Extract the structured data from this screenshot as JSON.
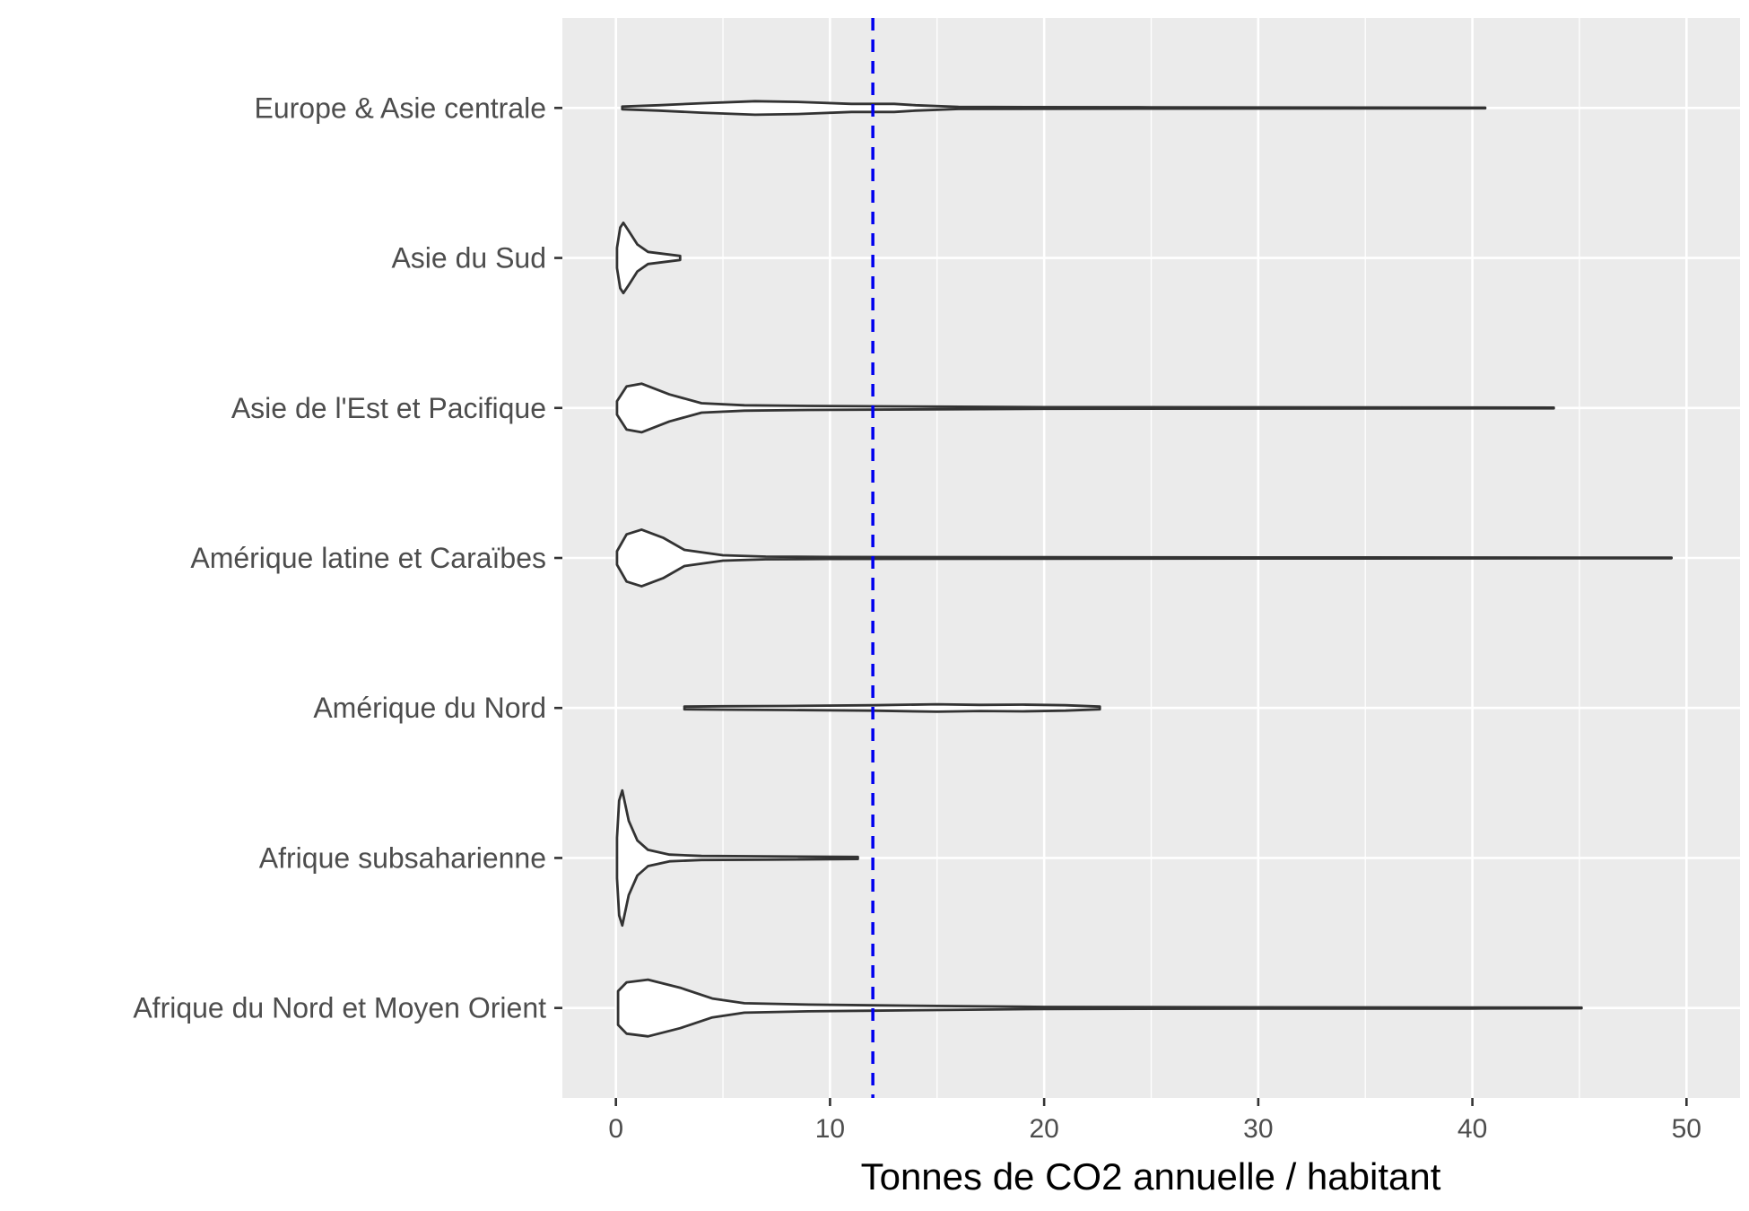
{
  "chart_data": {
    "type": "violin",
    "orientation": "horizontal",
    "title": "",
    "xlabel": "Tonnes de CO2 annuelle / habitant",
    "ylabel": "",
    "xlim": [
      -2.5,
      52.5
    ],
    "xticks": [
      0,
      10,
      20,
      30,
      40,
      50
    ],
    "xtick_labels": [
      "0",
      "10",
      "20",
      "30",
      "40",
      "50"
    ],
    "grid": true,
    "background": "#ebebeb",
    "grid_color": "#ffffff",
    "violin_stroke": "#333333",
    "reference_line": {
      "x": 12,
      "color": "#0000ee",
      "style": "dashed"
    },
    "categories": [
      "Afrique du Nord et Moyen Orient",
      "Afrique subsaharienne",
      "Amérique du Nord",
      "Amérique latine et Caraïbes",
      "Asie de l'Est et Pacifique",
      "Asie du Sud",
      "Europe & Asie centrale"
    ],
    "series": [
      {
        "name": "Afrique du Nord et Moyen Orient",
        "min": 0.1,
        "max": 45.1,
        "density": [
          [
            0.1,
            0.25
          ],
          [
            0.5,
            0.38
          ],
          [
            1.5,
            0.42
          ],
          [
            3,
            0.3
          ],
          [
            4.5,
            0.14
          ],
          [
            6,
            0.07
          ],
          [
            9,
            0.05
          ],
          [
            12,
            0.04
          ],
          [
            20,
            0.015
          ],
          [
            30,
            0.01
          ],
          [
            40,
            0.008
          ],
          [
            45.1,
            0.005
          ]
        ]
      },
      {
        "name": "Afrique subsaharienne",
        "min": 0.05,
        "max": 11.3,
        "density": [
          [
            0.05,
            0.3
          ],
          [
            0.15,
            0.85
          ],
          [
            0.3,
            1.0
          ],
          [
            0.6,
            0.55
          ],
          [
            1.0,
            0.26
          ],
          [
            1.5,
            0.12
          ],
          [
            2.5,
            0.05
          ],
          [
            4,
            0.03
          ],
          [
            7,
            0.025
          ],
          [
            11.3,
            0.015
          ]
        ]
      },
      {
        "name": "Amérique du Nord",
        "min": 3.2,
        "max": 22.6,
        "density": [
          [
            3.2,
            0.02
          ],
          [
            5,
            0.025
          ],
          [
            8,
            0.03
          ],
          [
            12,
            0.04
          ],
          [
            15,
            0.055
          ],
          [
            17,
            0.045
          ],
          [
            19,
            0.05
          ],
          [
            21,
            0.04
          ],
          [
            22.6,
            0.02
          ]
        ]
      },
      {
        "name": "Amérique latine et Caraïbes",
        "min": 0.05,
        "max": 49.3,
        "density": [
          [
            0.05,
            0.1
          ],
          [
            0.5,
            0.35
          ],
          [
            1.2,
            0.42
          ],
          [
            2.2,
            0.3
          ],
          [
            3.2,
            0.12
          ],
          [
            5,
            0.04
          ],
          [
            7,
            0.02
          ],
          [
            10,
            0.015
          ],
          [
            20,
            0.01
          ],
          [
            30,
            0.008
          ],
          [
            40,
            0.006
          ],
          [
            49.3,
            0.004
          ]
        ]
      },
      {
        "name": "Asie de l'Est et Pacifique",
        "min": 0.05,
        "max": 43.8,
        "density": [
          [
            0.05,
            0.1
          ],
          [
            0.5,
            0.32
          ],
          [
            1.2,
            0.36
          ],
          [
            2.5,
            0.2
          ],
          [
            4,
            0.07
          ],
          [
            6,
            0.04
          ],
          [
            9,
            0.03
          ],
          [
            15,
            0.02
          ],
          [
            20,
            0.012
          ],
          [
            30,
            0.01
          ],
          [
            43.8,
            0.005
          ]
        ]
      },
      {
        "name": "Asie du Sud",
        "min": 0.05,
        "max": 3.0,
        "density": [
          [
            0.05,
            0.15
          ],
          [
            0.2,
            0.45
          ],
          [
            0.35,
            0.52
          ],
          [
            0.6,
            0.4
          ],
          [
            1.0,
            0.2
          ],
          [
            1.5,
            0.09
          ],
          [
            2.0,
            0.07
          ],
          [
            2.5,
            0.05
          ],
          [
            3.0,
            0.03
          ]
        ]
      },
      {
        "name": "Europe & Asie centrale",
        "min": 0.3,
        "max": 40.6,
        "density": [
          [
            0.3,
            0.02
          ],
          [
            2,
            0.04
          ],
          [
            4,
            0.07
          ],
          [
            6.5,
            0.1
          ],
          [
            8.5,
            0.09
          ],
          [
            11,
            0.06
          ],
          [
            13,
            0.06
          ],
          [
            14,
            0.04
          ],
          [
            16,
            0.015
          ],
          [
            25,
            0.01
          ],
          [
            40.6,
            0.005
          ]
        ]
      }
    ]
  }
}
